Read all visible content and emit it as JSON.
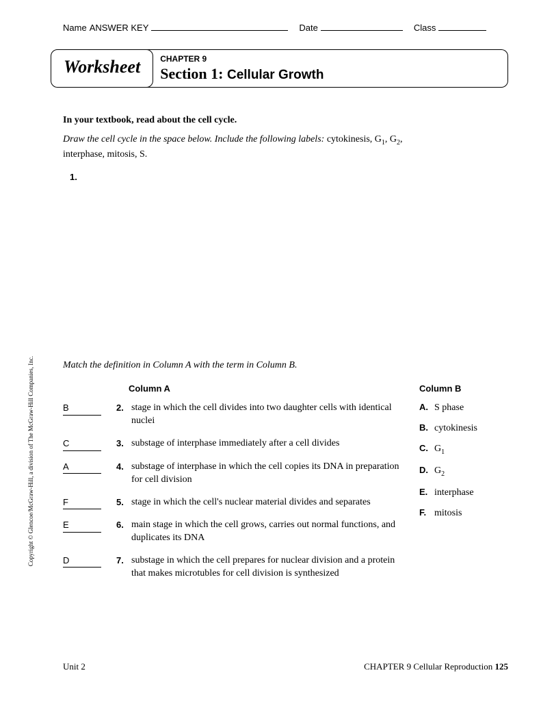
{
  "header": {
    "name_label": "Name",
    "name_value": "ANSWER KEY",
    "date_label": "Date",
    "class_label": "Class"
  },
  "title": {
    "worksheet": "Worksheet",
    "chapter": "CHAPTER 9",
    "section_prefix": "Section 1:",
    "section_name": "Cellular Growth"
  },
  "instructions": {
    "bold": "In your textbook, read about the cell cycle.",
    "italic": "Draw the cell cycle in the space below. Include the following labels:",
    "labels_plain": " cytokinesis, G",
    "g1sub": "1",
    "comma1": ", G",
    "g2sub": "2",
    "comma2": ",",
    "line2": "interphase, mitosis, S.",
    "q1": "1."
  },
  "match": {
    "instr": "Match the definition in Column A with the term in Column B.",
    "colA": "Column A",
    "colB": "Column B"
  },
  "questions": [
    {
      "ans": "B",
      "num": "2.",
      "text": "stage in which the cell divides into two daughter cells with identical nuclei"
    },
    {
      "ans": "C",
      "num": "3.",
      "text": "substage of interphase immediately after a cell divides"
    },
    {
      "ans": "A",
      "num": "4.",
      "text": "substage of interphase in which the cell copies its DNA in preparation for cell division"
    },
    {
      "ans": "F",
      "num": "5.",
      "text": "stage in which the cell's nuclear material divides and separates"
    },
    {
      "ans": "E",
      "num": "6.",
      "text": "main stage in which the cell grows, carries out normal functions, and duplicates its DNA"
    },
    {
      "ans": "D",
      "num": "7.",
      "text": "substage in which the cell prepares for nuclear division and a protein that makes microtubles for cell division is synthesized"
    }
  ],
  "terms": [
    {
      "let": "A.",
      "text": "S phase",
      "sub": ""
    },
    {
      "let": "B.",
      "text": "cytokinesis",
      "sub": ""
    },
    {
      "let": "C.",
      "text": "G",
      "sub": "1"
    },
    {
      "let": "D.",
      "text": "G",
      "sub": "2"
    },
    {
      "let": "E.",
      "text": "interphase",
      "sub": ""
    },
    {
      "let": "F.",
      "text": "mitosis",
      "sub": ""
    }
  ],
  "copyright": "Copyright © Glencoe/McGraw-Hill, a division of The McGraw-Hill Companies, Inc.",
  "footer": {
    "left": "Unit 2",
    "right_text": "CHAPTER 9 Cellular Reproduction ",
    "page": "125"
  }
}
